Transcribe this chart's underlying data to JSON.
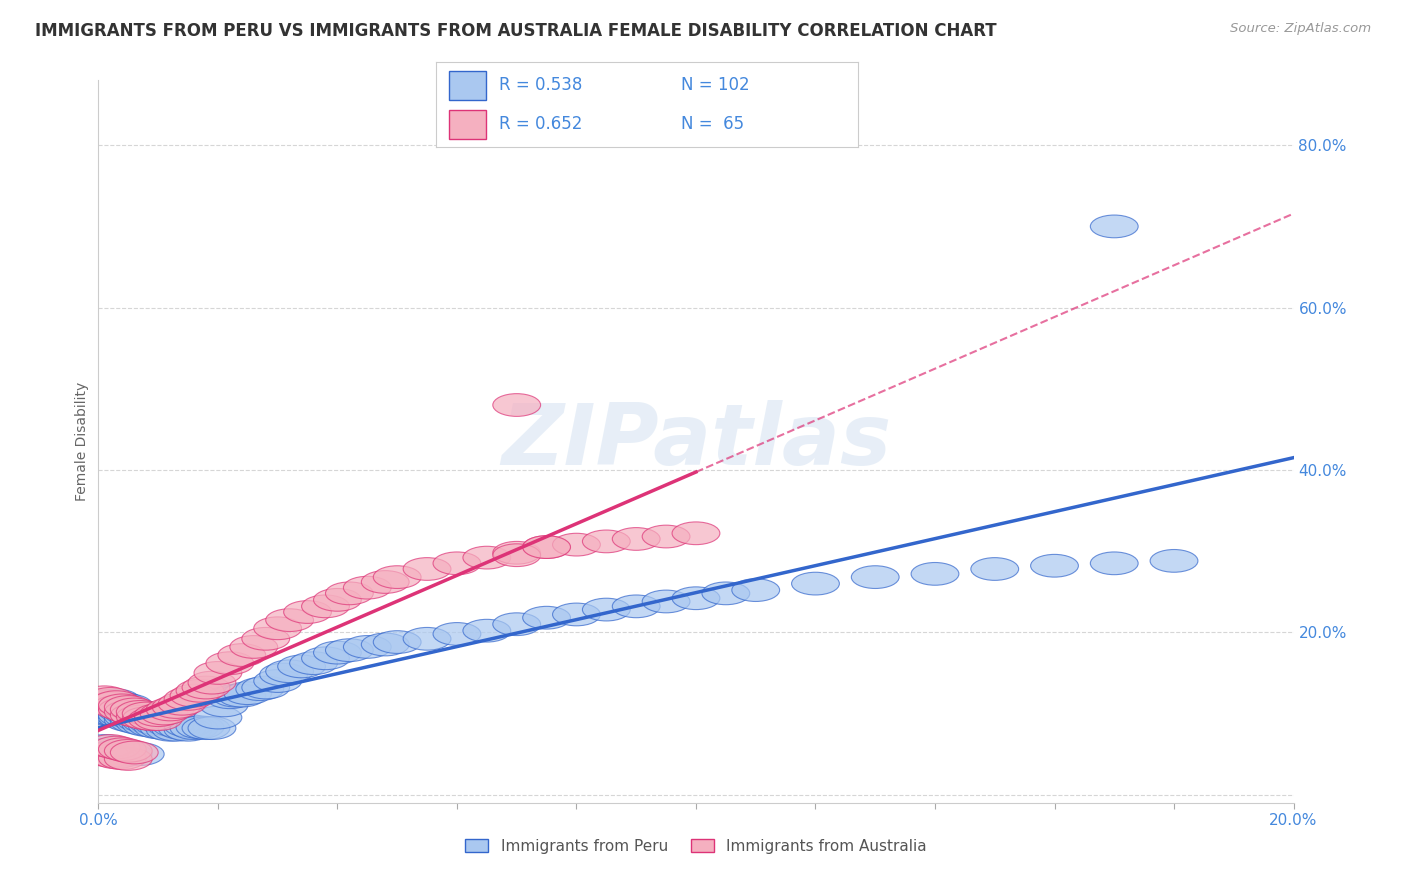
{
  "title": "IMMIGRANTS FROM PERU VS IMMIGRANTS FROM AUSTRALIA FEMALE DISABILITY CORRELATION CHART",
  "source_text": "Source: ZipAtlas.com",
  "ylabel": "Female Disability",
  "xlim": [
    0.0,
    0.2
  ],
  "ylim": [
    -0.01,
    0.88
  ],
  "ytick_positions": [
    0.0,
    0.2,
    0.4,
    0.6,
    0.8
  ],
  "ytick_labels": [
    "",
    "20.0%",
    "40.0%",
    "60.0%",
    "80.0%"
  ],
  "peru_color": "#aac8f0",
  "peru_line_color": "#3366cc",
  "australia_color": "#f5b0c0",
  "australia_line_color": "#dd3377",
  "peru_R": 0.538,
  "peru_N": 102,
  "australia_R": 0.652,
  "australia_N": 65,
  "legend_label_peru": "Immigrants from Peru",
  "legend_label_australia": "Immigrants from Australia",
  "watermark": "ZIPatlas",
  "background_color": "#ffffff",
  "grid_color": "#cccccc",
  "title_fontsize": 12,
  "axis_label_color": "#4488dd",
  "peru_scatter_x": [
    0.001,
    0.001,
    0.001,
    0.001,
    0.002,
    0.002,
    0.002,
    0.002,
    0.002,
    0.003,
    0.003,
    0.003,
    0.003,
    0.003,
    0.003,
    0.004,
    0.004,
    0.004,
    0.004,
    0.004,
    0.005,
    0.005,
    0.005,
    0.005,
    0.005,
    0.006,
    0.006,
    0.006,
    0.006,
    0.007,
    0.007,
    0.007,
    0.007,
    0.008,
    0.008,
    0.008,
    0.008,
    0.009,
    0.009,
    0.009,
    0.01,
    0.01,
    0.01,
    0.011,
    0.011,
    0.012,
    0.012,
    0.013,
    0.013,
    0.014,
    0.015,
    0.015,
    0.016,
    0.017,
    0.018,
    0.019,
    0.02,
    0.021,
    0.022,
    0.023,
    0.024,
    0.025,
    0.027,
    0.028,
    0.03,
    0.031,
    0.032,
    0.034,
    0.036,
    0.038,
    0.04,
    0.042,
    0.045,
    0.048,
    0.05,
    0.055,
    0.06,
    0.065,
    0.07,
    0.075,
    0.08,
    0.085,
    0.09,
    0.095,
    0.1,
    0.105,
    0.11,
    0.12,
    0.13,
    0.14,
    0.15,
    0.16,
    0.17,
    0.18,
    0.001,
    0.001,
    0.002,
    0.003,
    0.004,
    0.005,
    0.007,
    0.17
  ],
  "peru_scatter_y": [
    0.1,
    0.105,
    0.11,
    0.115,
    0.1,
    0.105,
    0.108,
    0.112,
    0.115,
    0.098,
    0.1,
    0.104,
    0.108,
    0.112,
    0.116,
    0.095,
    0.098,
    0.103,
    0.108,
    0.112,
    0.092,
    0.096,
    0.1,
    0.105,
    0.11,
    0.09,
    0.094,
    0.098,
    0.104,
    0.088,
    0.092,
    0.096,
    0.102,
    0.086,
    0.09,
    0.095,
    0.1,
    0.085,
    0.089,
    0.095,
    0.083,
    0.087,
    0.093,
    0.082,
    0.088,
    0.08,
    0.086,
    0.08,
    0.085,
    0.082,
    0.08,
    0.085,
    0.082,
    0.083,
    0.082,
    0.082,
    0.095,
    0.11,
    0.12,
    0.122,
    0.122,
    0.125,
    0.13,
    0.132,
    0.14,
    0.148,
    0.152,
    0.158,
    0.162,
    0.168,
    0.175,
    0.178,
    0.182,
    0.185,
    0.188,
    0.192,
    0.198,
    0.202,
    0.21,
    0.218,
    0.222,
    0.228,
    0.232,
    0.238,
    0.242,
    0.248,
    0.252,
    0.26,
    0.268,
    0.272,
    0.278,
    0.282,
    0.285,
    0.288,
    0.06,
    0.055,
    0.052,
    0.048,
    0.048,
    0.05,
    0.05,
    0.7
  ],
  "australia_scatter_x": [
    0.001,
    0.001,
    0.002,
    0.002,
    0.003,
    0.003,
    0.004,
    0.004,
    0.005,
    0.005,
    0.006,
    0.006,
    0.007,
    0.007,
    0.008,
    0.008,
    0.009,
    0.01,
    0.01,
    0.011,
    0.012,
    0.013,
    0.014,
    0.015,
    0.016,
    0.017,
    0.018,
    0.019,
    0.02,
    0.022,
    0.024,
    0.026,
    0.028,
    0.03,
    0.032,
    0.035,
    0.038,
    0.04,
    0.042,
    0.045,
    0.048,
    0.05,
    0.055,
    0.06,
    0.065,
    0.07,
    0.075,
    0.08,
    0.085,
    0.09,
    0.095,
    0.1,
    0.001,
    0.002,
    0.003,
    0.004,
    0.005,
    0.002,
    0.003,
    0.004,
    0.005,
    0.006,
    0.07,
    0.075,
    0.07
  ],
  "australia_scatter_y": [
    0.115,
    0.12,
    0.112,
    0.118,
    0.108,
    0.114,
    0.105,
    0.11,
    0.102,
    0.108,
    0.098,
    0.105,
    0.096,
    0.102,
    0.094,
    0.1,
    0.093,
    0.093,
    0.098,
    0.1,
    0.105,
    0.108,
    0.112,
    0.118,
    0.122,
    0.128,
    0.132,
    0.138,
    0.15,
    0.162,
    0.172,
    0.182,
    0.192,
    0.205,
    0.215,
    0.225,
    0.232,
    0.24,
    0.248,
    0.255,
    0.262,
    0.268,
    0.278,
    0.285,
    0.292,
    0.298,
    0.305,
    0.308,
    0.312,
    0.315,
    0.318,
    0.322,
    0.05,
    0.048,
    0.046,
    0.045,
    0.044,
    0.06,
    0.058,
    0.056,
    0.054,
    0.052,
    0.295,
    0.305,
    0.48
  ]
}
